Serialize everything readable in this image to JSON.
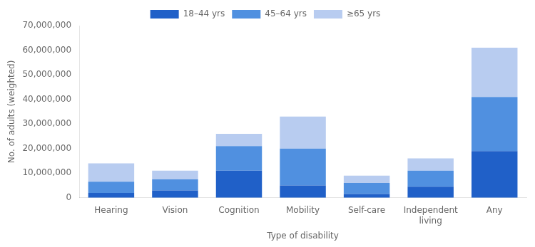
{
  "chart_data": {
    "type": "bar",
    "stacked": true,
    "categories": [
      "Hearing",
      "Vision",
      "Cognition",
      "Mobility",
      "Self-care",
      "Independent\nliving",
      "Any"
    ],
    "series": [
      {
        "name": "18–44 yrs",
        "color": "#2060c8",
        "values": [
          2000000,
          3000000,
          11000000,
          5000000,
          1500000,
          4500000,
          19000000
        ]
      },
      {
        "name": "45–64 yrs",
        "color": "#5090e0",
        "values": [
          4500000,
          4500000,
          10000000,
          15000000,
          4500000,
          6500000,
          22000000
        ]
      },
      {
        "name": "≥65 yrs",
        "color": "#b8ccf0",
        "values": [
          7500000,
          3500000,
          5000000,
          13000000,
          3000000,
          5000000,
          20000000
        ]
      }
    ],
    "xlabel": "Type of disability",
    "ylabel": "No. of adults (weighted)",
    "ylim": [
      0,
      70000000
    ],
    "yticks": [
      0,
      {
        "value": 10000000,
        "label": "10,000,000"
      },
      {
        "value": 20000000,
        "label": "20,000,000"
      },
      {
        "value": 30000000,
        "label": "30,000,000"
      },
      {
        "value": 40000000,
        "label": "40,000,000"
      },
      {
        "value": 50000000,
        "label": "50,000,000"
      },
      {
        "value": 60000000,
        "label": "60,000,000"
      },
      {
        "value": 70000000,
        "label": "70,000,000"
      }
    ],
    "grid": false,
    "legend": "top"
  }
}
